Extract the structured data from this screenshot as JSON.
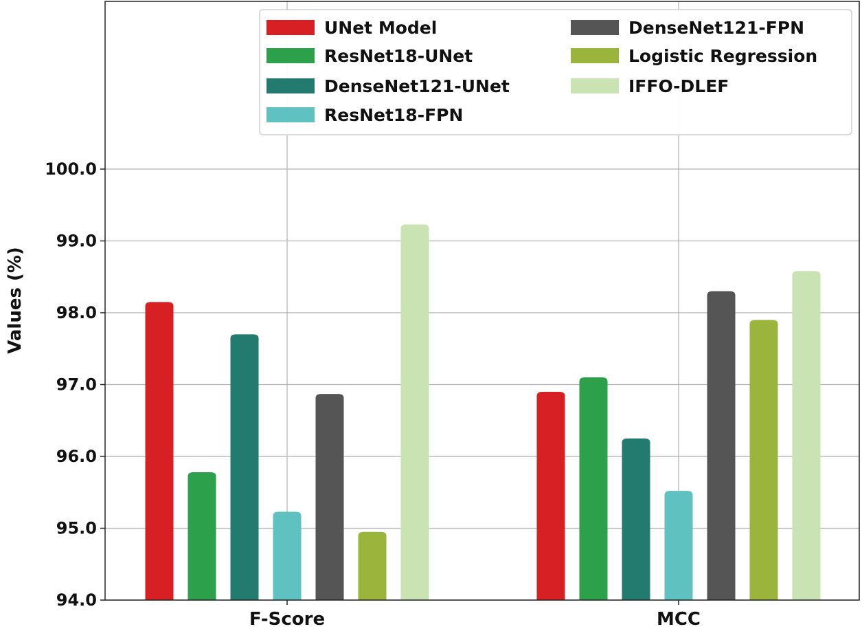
{
  "chart_data": {
    "type": "bar",
    "title": "",
    "xlabel": "",
    "ylabel": "Values (%)",
    "ylim": [
      94.0,
      100.0
    ],
    "yticks": [
      "94.0",
      "95.0",
      "96.0",
      "97.0",
      "98.0",
      "99.0",
      "100.0"
    ],
    "grid": true,
    "legend_position": "top-right",
    "categories": [
      "F-Score",
      "MCC"
    ],
    "series": [
      {
        "name": "UNet Model",
        "color": "#d62024",
        "values": [
          98.15,
          96.9
        ]
      },
      {
        "name": "ResNet18-UNet",
        "color": "#2ca04a",
        "values": [
          95.78,
          97.1
        ]
      },
      {
        "name": "DenseNet121-UNet",
        "color": "#227b6e",
        "values": [
          97.7,
          96.25
        ]
      },
      {
        "name": "ResNet18-FPN",
        "color": "#5fc1c0",
        "values": [
          95.23,
          95.52
        ]
      },
      {
        "name": "DenseNet121-FPN",
        "color": "#555555",
        "values": [
          96.87,
          98.3
        ]
      },
      {
        "name": "Logistic Regression",
        "color": "#9bb53c",
        "values": [
          94.95,
          97.9
        ]
      },
      {
        "name": "IFFO-DLEF",
        "color": "#c9e3b3",
        "values": [
          99.23,
          98.58
        ]
      }
    ]
  }
}
